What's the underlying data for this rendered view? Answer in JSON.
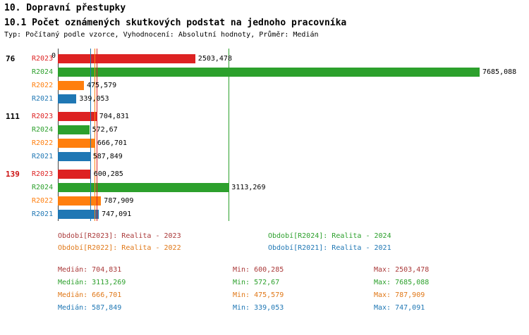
{
  "header": {
    "title": "10. Dopravní přestupky",
    "subtitle": "10.1 Počet oznámených skutkových podstat na jednoho pracovníka",
    "meta": "Typ: Počítaný podle vzorce, Vyhodnocení: Absolutní hodnoty, Průměr: Medián"
  },
  "chart_data": {
    "type": "bar",
    "orientation": "horizontal",
    "x_axis": {
      "zero_label": "0",
      "max": 7685.088
    },
    "series_colors": {
      "R2023": "#dd2222",
      "R2024": "#2ca02c",
      "R2022": "#ff7f0e",
      "R2021": "#1f77b4"
    },
    "groups": [
      {
        "label": "76",
        "label_color": "#000000",
        "bars": [
          {
            "series": "R2023",
            "value": 2503.478,
            "display": "2503,478"
          },
          {
            "series": "R2024",
            "value": 7685.088,
            "display": "7685,088"
          },
          {
            "series": "R2022",
            "value": 475.579,
            "display": "475,579"
          },
          {
            "series": "R2021",
            "value": 339.053,
            "display": "339,053"
          }
        ]
      },
      {
        "label": "111",
        "label_color": "#000000",
        "bars": [
          {
            "series": "R2023",
            "value": 704.831,
            "display": "704,831"
          },
          {
            "series": "R2024",
            "value": 572.67,
            "display": "572,67"
          },
          {
            "series": "R2022",
            "value": 666.701,
            "display": "666,701"
          },
          {
            "series": "R2021",
            "value": 587.849,
            "display": "587,849"
          }
        ]
      },
      {
        "label": "139",
        "label_color": "#cc1111",
        "bars": [
          {
            "series": "R2023",
            "value": 600.285,
            "display": "600,285"
          },
          {
            "series": "R2024",
            "value": 3113.269,
            "display": "3113,269"
          },
          {
            "series": "R2022",
            "value": 787.909,
            "display": "787,909"
          },
          {
            "series": "R2021",
            "value": 747.091,
            "display": "747,091"
          }
        ]
      }
    ],
    "median_lines": [
      {
        "series": "R2023",
        "value": 704.831,
        "color": "#dd2222"
      },
      {
        "series": "R2024",
        "value": 3113.269,
        "color": "#2ca02c"
      },
      {
        "series": "R2022",
        "value": 666.701,
        "color": "#ff7f0e"
      },
      {
        "series": "R2021",
        "value": 587.849,
        "color": "#1f77b4"
      }
    ]
  },
  "legend": {
    "items": [
      {
        "label": "Období[R2023]: Realita - 2023",
        "color": "#aa3939"
      },
      {
        "label": "Období[R2024]: Realita - 2024",
        "color": "#2ca02c"
      },
      {
        "label": "Období[R2022]: Realita - 2022",
        "color": "#e07818"
      },
      {
        "label": "Období[R2021]: Realita - 2021",
        "color": "#1f77b4"
      }
    ]
  },
  "stats": {
    "median_label": "Medián:",
    "min_label": "Min:",
    "max_label": "Max:",
    "rows": [
      {
        "color": "#aa3939",
        "median": "704,831",
        "min": "600,285",
        "max": "2503,478"
      },
      {
        "color": "#2ca02c",
        "median": "3113,269",
        "min": "572,67",
        "max": "7685,088"
      },
      {
        "color": "#e07818",
        "median": "666,701",
        "min": "475,579",
        "max": "787,909"
      },
      {
        "color": "#1f77b4",
        "median": "587,849",
        "min": "339,053",
        "max": "747,091"
      }
    ]
  }
}
